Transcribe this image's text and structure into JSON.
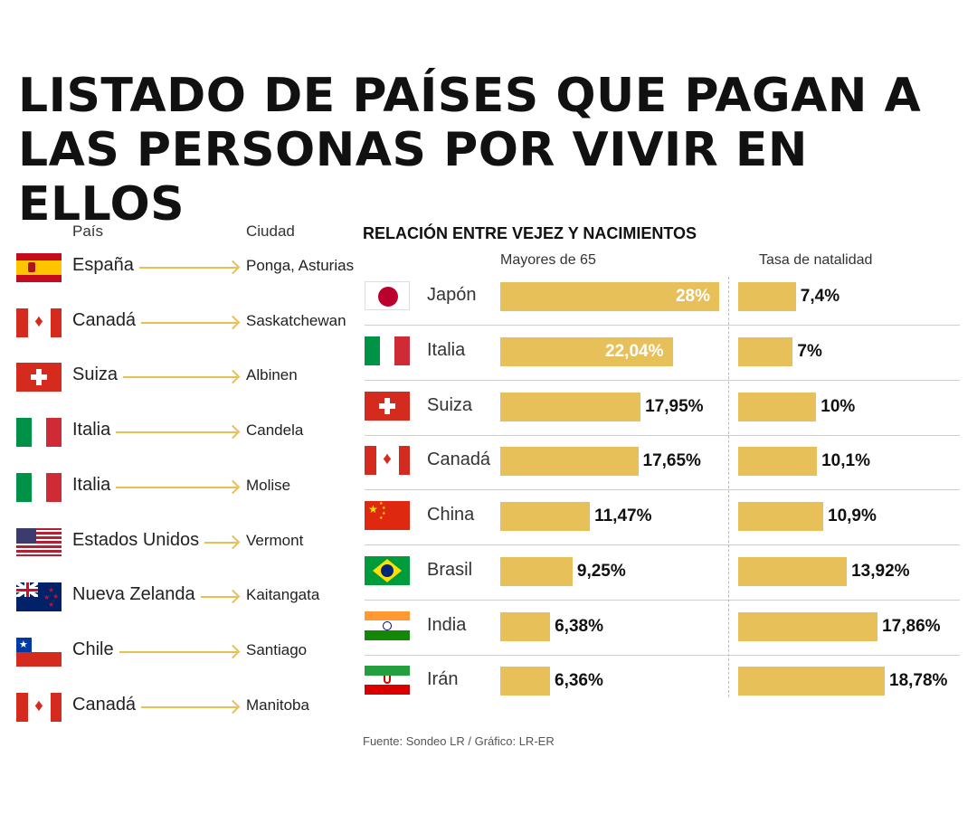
{
  "title": {
    "line1": "LISTADO DE PAÍSES QUE PAGAN A",
    "line2": "LAS PERSONAS POR VIVIR EN ELLOS"
  },
  "left_table": {
    "header_country": "País",
    "header_city": "Ciudad",
    "rows": [
      {
        "country": "España",
        "city": "Ponga, Asturias",
        "flag": "spain"
      },
      {
        "country": "Canadá",
        "city": "Saskatchewan",
        "flag": "canada"
      },
      {
        "country": "Suiza",
        "city": "Albinen",
        "flag": "switzerland"
      },
      {
        "country": "Italia",
        "city": "Candela",
        "flag": "italy"
      },
      {
        "country": "Italia",
        "city": "Molise",
        "flag": "italy"
      },
      {
        "country": "Estados Unidos",
        "city": "Vermont",
        "flag": "usa"
      },
      {
        "country": "Nueva Zelanda",
        "city": "Kaitangata",
        "flag": "new-zealand"
      },
      {
        "country": "Chile",
        "city": "Santiago",
        "flag": "chile"
      },
      {
        "country": "Canadá",
        "city": "Manitoba",
        "flag": "canada"
      }
    ]
  },
  "colors": {
    "bar": "#e8c05a",
    "arrow": "#e8bf55"
  },
  "chart_data": {
    "type": "bar",
    "title": "RELACIÓN ENTRE VEJEZ Y NACIMIENTOS",
    "orientation": "horizontal",
    "categories": [
      "Japón",
      "Italia",
      "Suiza",
      "Canadá",
      "China",
      "Brasil",
      "India",
      "Irán"
    ],
    "category_flags": [
      "japan",
      "italy",
      "switzerland",
      "canada",
      "china",
      "brazil",
      "india",
      "iran"
    ],
    "series": [
      {
        "name": "Mayores de 65",
        "values": [
          28,
          22.04,
          17.95,
          17.65,
          11.47,
          9.25,
          6.38,
          6.36
        ],
        "labels": [
          "28%",
          "22,04%",
          "17,95%",
          "17,65%",
          "11,47%",
          "9,25%",
          "6,38%",
          "6,36%"
        ]
      },
      {
        "name": "Tasa de natalidad",
        "values": [
          7.4,
          7,
          10,
          10.1,
          10.9,
          13.92,
          17.86,
          18.78
        ],
        "labels": [
          "7,4%",
          "7%",
          "10%",
          "10,1%",
          "10,9%",
          "13,92%",
          "17,86%",
          "18,78%"
        ]
      }
    ]
  },
  "source": "Fuente: Sondeo LR / Gráfico: LR-ER"
}
